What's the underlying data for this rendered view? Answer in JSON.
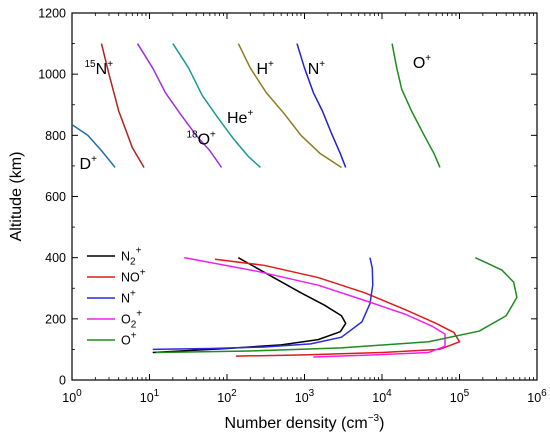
{
  "chart_data": {
    "type": "line",
    "xlabel": "Number density (cm⁻³)",
    "ylabel": "Altitude (km)",
    "x_scale": "log",
    "xlim": [
      1,
      1000000
    ],
    "ylim": [
      0,
      1200
    ],
    "x_ticks": [
      1,
      10,
      100,
      1000,
      10000,
      100000,
      1000000
    ],
    "x_tick_labels": [
      {
        "base": "10",
        "exp": "0"
      },
      {
        "base": "10",
        "exp": "1"
      },
      {
        "base": "10",
        "exp": "2"
      },
      {
        "base": "10",
        "exp": "3"
      },
      {
        "base": "10",
        "exp": "4"
      },
      {
        "base": "10",
        "exp": "5"
      },
      {
        "base": "10",
        "exp": "6"
      }
    ],
    "y_ticks": [
      0,
      200,
      400,
      600,
      800,
      1000,
      1200
    ],
    "y_tick_labels": [
      "0",
      "200",
      "400",
      "600",
      "800",
      "1000",
      "1200"
    ],
    "grid": false,
    "legend_position": "lower-left",
    "upper_ions": [
      {
        "label": "D+",
        "color": "#1f6fa8",
        "points": [
          [
            1.0,
            835
          ],
          [
            1.6,
            800
          ],
          [
            2.4,
            750
          ],
          [
            3.6,
            695
          ]
        ]
      },
      {
        "label": "15N+",
        "color": "#b22222",
        "points": [
          [
            2.4,
            1100
          ],
          [
            3.0,
            1000
          ],
          [
            4.0,
            880
          ],
          [
            6.0,
            760
          ],
          [
            8.5,
            695
          ]
        ]
      },
      {
        "label": "18O+",
        "color": "#a030e0",
        "points": [
          [
            7.0,
            1100
          ],
          [
            11,
            1020
          ],
          [
            16,
            940
          ],
          [
            25,
            870
          ],
          [
            40,
            800
          ],
          [
            60,
            750
          ],
          [
            85,
            695
          ]
        ]
      },
      {
        "label": "He+",
        "color": "#1a9999",
        "points": [
          [
            20,
            1100
          ],
          [
            32,
            1020
          ],
          [
            48,
            930
          ],
          [
            75,
            860
          ],
          [
            120,
            790
          ],
          [
            190,
            730
          ],
          [
            270,
            695
          ]
        ]
      },
      {
        "label": "H+",
        "color": "#8b7d1e",
        "points": [
          [
            140,
            1100
          ],
          [
            200,
            1020
          ],
          [
            320,
            940
          ],
          [
            550,
            870
          ],
          [
            900,
            800
          ],
          [
            1600,
            740
          ],
          [
            3000,
            695
          ]
        ]
      },
      {
        "label": "N+",
        "color": "#2222cc",
        "points": [
          [
            800,
            1100
          ],
          [
            1000,
            1020
          ],
          [
            1300,
            940
          ],
          [
            1700,
            880
          ],
          [
            2200,
            810
          ],
          [
            2900,
            740
          ],
          [
            3400,
            695
          ]
        ]
      },
      {
        "label": "O+",
        "color": "#1e8c1e",
        "points": [
          [
            13500,
            1100
          ],
          [
            15500,
            1020
          ],
          [
            18000,
            950
          ],
          [
            24000,
            880
          ],
          [
            35000,
            800
          ],
          [
            47000,
            740
          ],
          [
            56000,
            695
          ]
        ]
      }
    ],
    "upper_ion_text": [
      {
        "base": "15",
        "kind": "pre",
        "after": "N",
        "sup": "+"
      },
      {
        "base": "18",
        "kind": "pre",
        "after": "O",
        "sup": "+"
      },
      {
        "base": "He",
        "kind": "post",
        "sup": "+"
      },
      {
        "base": "H",
        "kind": "post",
        "sup": "+"
      },
      {
        "base": "N",
        "kind": "post",
        "sup": "+"
      },
      {
        "base": "O",
        "kind": "post",
        "sup": "+"
      },
      {
        "base": "D",
        "kind": "post",
        "sup": "+"
      }
    ],
    "series": [
      {
        "name": "N2+",
        "color": "#000000",
        "points": [
          [
            11,
            90
          ],
          [
            25,
            95
          ],
          [
            100,
            103
          ],
          [
            500,
            115
          ],
          [
            1500,
            132
          ],
          [
            2900,
            158
          ],
          [
            3400,
            185
          ],
          [
            3000,
            210
          ],
          [
            1800,
            245
          ],
          [
            900,
            285
          ],
          [
            400,
            335
          ],
          [
            140,
            400
          ]
        ]
      },
      {
        "name": "NO+",
        "color": "#e01b1b",
        "points": [
          [
            130,
            78
          ],
          [
            1000,
            82
          ],
          [
            10000,
            90
          ],
          [
            55000,
            100
          ],
          [
            100000,
            125
          ],
          [
            85000,
            155
          ],
          [
            50000,
            185
          ],
          [
            20000,
            230
          ],
          [
            6000,
            285
          ],
          [
            1500,
            335
          ],
          [
            300,
            375
          ],
          [
            70,
            395
          ]
        ]
      },
      {
        "name": "N+",
        "color": "#2a2ae0",
        "points": [
          [
            11,
            100
          ],
          [
            60,
            103
          ],
          [
            300,
            108
          ],
          [
            1200,
            118
          ],
          [
            3000,
            140
          ],
          [
            5500,
            190
          ],
          [
            7000,
            250
          ],
          [
            7600,
            310
          ],
          [
            7500,
            365
          ],
          [
            7000,
            400
          ]
        ]
      },
      {
        "name": "O2+",
        "color": "#f020f0",
        "points": [
          [
            1300,
            75
          ],
          [
            8000,
            82
          ],
          [
            40000,
            90
          ],
          [
            65000,
            110
          ],
          [
            65000,
            150
          ],
          [
            45000,
            175
          ],
          [
            20000,
            215
          ],
          [
            6000,
            260
          ],
          [
            1500,
            310
          ],
          [
            250,
            355
          ],
          [
            28,
            400
          ]
        ]
      },
      {
        "name": "O+",
        "color": "#1e8c1e",
        "points": [
          [
            12,
            90
          ],
          [
            200,
            95
          ],
          [
            3000,
            105
          ],
          [
            40000,
            125
          ],
          [
            180000,
            160
          ],
          [
            400000,
            210
          ],
          [
            550000,
            270
          ],
          [
            500000,
            320
          ],
          [
            350000,
            360
          ],
          [
            160000,
            400
          ]
        ]
      }
    ],
    "legend": [
      {
        "base": "N",
        "sub": "2",
        "sup": "+"
      },
      {
        "base": "NO",
        "sub": "",
        "sup": "+"
      },
      {
        "base": "N",
        "sub": "",
        "sup": "+"
      },
      {
        "base": "O",
        "sub": "2",
        "sup": "+"
      },
      {
        "base": "O",
        "sub": "",
        "sup": "+"
      }
    ]
  }
}
